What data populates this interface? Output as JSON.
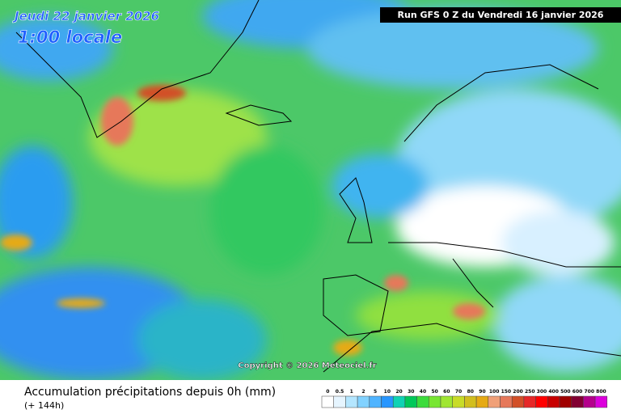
{
  "header": {
    "date": "Jeudi 22 janvier 2026",
    "time": "1:00 locale",
    "run": "Run GFS 0 Z du Vendredi 16 janvier 2026"
  },
  "copyright": "Copyright © 2026 Meteociel.fr",
  "legend": {
    "title": "Accumulation précipitations depuis 0h (mm)",
    "subtitle": "(+ 144h)",
    "levels": [
      0,
      0.5,
      1,
      2,
      5,
      10,
      20,
      30,
      40,
      50,
      60,
      70,
      80,
      90,
      100,
      150,
      200,
      250,
      300,
      400,
      500,
      600,
      700,
      800
    ],
    "colors": [
      "#ffffff",
      "#e6f5ff",
      "#b4e6ff",
      "#82d2ff",
      "#50b4ff",
      "#2896ff",
      "#10d2b4",
      "#00c85a",
      "#3cdc3c",
      "#78e632",
      "#a0e632",
      "#c8dc28",
      "#d2be1e",
      "#e6aa14",
      "#f0a078",
      "#e6785a",
      "#d25028",
      "#e62828",
      "#ff0000",
      "#c80000",
      "#a00000",
      "#820032",
      "#b4008c",
      "#dc00dc"
    ]
  }
}
